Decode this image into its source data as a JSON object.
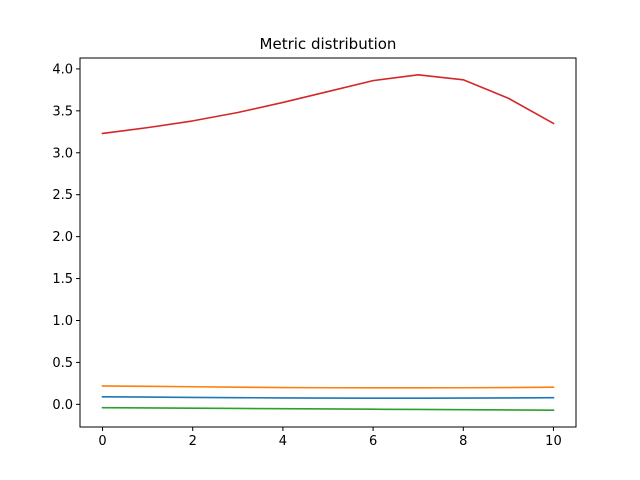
{
  "chart_data": {
    "type": "line",
    "title": "Metric distribution",
    "xlabel": "",
    "ylabel": "",
    "xlim": [
      -0.5,
      10.5
    ],
    "ylim": [
      -0.27,
      4.13
    ],
    "grid": false,
    "legend": "none",
    "x": [
      0,
      1,
      2,
      3,
      4,
      5,
      6,
      7,
      8,
      9,
      10
    ],
    "x_ticks": [
      0,
      2,
      4,
      6,
      8,
      10
    ],
    "x_tick_labels": [
      "0",
      "2",
      "4",
      "6",
      "8",
      "10"
    ],
    "y_ticks": [
      0.0,
      0.5,
      1.0,
      1.5,
      2.0,
      2.5,
      3.0,
      3.5,
      4.0
    ],
    "y_tick_labels": [
      "0.0",
      "0.5",
      "1.0",
      "1.5",
      "2.0",
      "2.5",
      "3.0",
      "3.5",
      "4.0"
    ],
    "series": [
      {
        "color": "#1f77b4",
        "values": [
          0.09,
          0.087,
          0.083,
          0.08,
          0.077,
          0.075,
          0.074,
          0.074,
          0.075,
          0.077,
          0.08
        ]
      },
      {
        "color": "#ff7f0e",
        "values": [
          0.22,
          0.215,
          0.21,
          0.205,
          0.2,
          0.198,
          0.197,
          0.197,
          0.198,
          0.2,
          0.205
        ]
      },
      {
        "color": "#2ca02c",
        "values": [
          -0.04,
          -0.043,
          -0.046,
          -0.049,
          -0.052,
          -0.055,
          -0.058,
          -0.061,
          -0.063,
          -0.066,
          -0.07
        ]
      },
      {
        "color": "#d62728",
        "values": [
          3.23,
          3.3,
          3.38,
          3.48,
          3.6,
          3.73,
          3.86,
          3.93,
          3.87,
          3.65,
          3.35
        ]
      }
    ]
  }
}
